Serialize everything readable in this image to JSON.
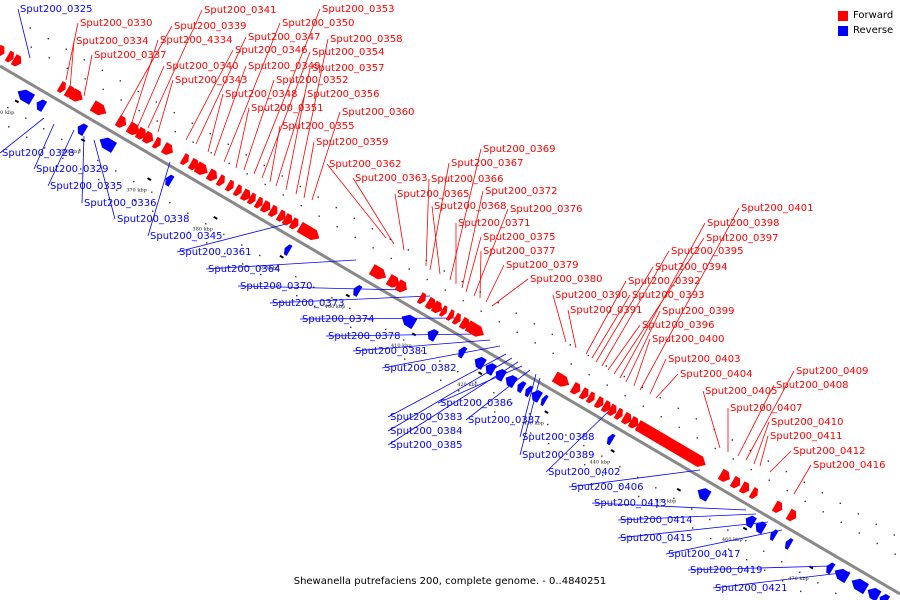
{
  "legend": {
    "forward_label": "Forward",
    "reverse_label": "Reverse",
    "forward_color": "#ff0000",
    "reverse_color": "#0000ff"
  },
  "caption": "Shewanella putrefaciens 200, complete genome. - 0..4840251",
  "colors": {
    "forward": "#ff0000",
    "reverse": "#0000ff",
    "backbone": "#888888"
  },
  "ticks": [
    "350 kbp",
    "360 kbp",
    "370 kbp",
    "380 kbp",
    "390 kbp",
    "400 kbp",
    "410 kbp",
    "420 kbp",
    "430 kbp",
    "440 kbp",
    "450 kbp",
    "460 kbp",
    "470 kbp"
  ],
  "forward_genes": [
    "Sput200_0330",
    "Sput200_0334",
    "Sput200_0337",
    "Sput200_0339",
    "Sput200_4334",
    "Sput200_0340",
    "Sput200_0341",
    "Sput200_0343",
    "Sput200_0346",
    "Sput200_0347",
    "Sput200_0348",
    "Sput200_0349",
    "Sput200_0350",
    "Sput200_0351",
    "Sput200_0352",
    "Sput200_0353",
    "Sput200_0354",
    "Sput200_0355",
    "Sput200_0356",
    "Sput200_0357",
    "Sput200_0358",
    "Sput200_0359",
    "Sput200_0360",
    "Sput200_0362",
    "Sput200_0363",
    "Sput200_0365",
    "Sput200_0366",
    "Sput200_0367",
    "Sput200_0368",
    "Sput200_0369",
    "Sput200_0371",
    "Sput200_0372",
    "Sput200_0375",
    "Sput200_0376",
    "Sput200_0377",
    "Sput200_0379",
    "Sput200_0380",
    "Sput200_0390",
    "Sput200_0391",
    "Sput200_0392",
    "Sput200_0393",
    "Sput200_0394",
    "Sput200_0395",
    "Sput200_0396",
    "Sput200_0397",
    "Sput200_0398",
    "Sput200_0399",
    "Sput200_0400",
    "Sput200_0401",
    "Sput200_0403",
    "Sput200_0404",
    "Sput200_0405",
    "Sput200_0407",
    "Sput200_0408",
    "Sput200_0409",
    "Sput200_0410",
    "Sput200_0411",
    "Sput200_0412",
    "Sput200_0416"
  ],
  "reverse_genes": [
    "Sput200_0325",
    "Sput200_0328",
    "Sput200_0329",
    "Sput200_0335",
    "Sput200_0336",
    "Sput200_0338",
    "Sput200_0345",
    "Sput200_0361",
    "Sput200_0364",
    "Sput200_0370",
    "Sput200_0373",
    "Sput200_0374",
    "Sput200_0378",
    "Sput200_0381",
    "Sput200_0382",
    "Sput200_0383",
    "Sput200_0384",
    "Sput200_0385",
    "Sput200_0386",
    "Sput200_0387",
    "Sput200_0388",
    "Sput200_0389",
    "Sput200_0402",
    "Sput200_0406",
    "Sput200_0413",
    "Sput200_0414",
    "Sput200_0415",
    "Sput200_0417",
    "Sput200_0419",
    "Sput200_0421"
  ]
}
